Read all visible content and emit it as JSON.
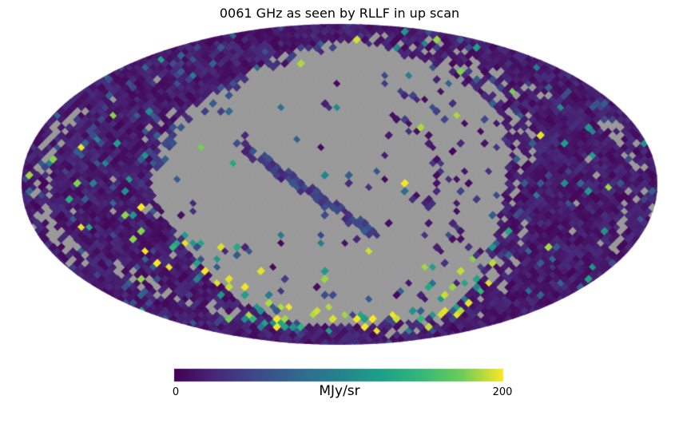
{
  "chart_data": {
    "type": "heatmap",
    "projection": "mollweide",
    "title": "0061 GHz as seen by RLLF in up scan",
    "colorbar": {
      "label": "MJy/sr",
      "min": 0,
      "max": 200,
      "tick_labels": [
        "0",
        "200"
      ]
    },
    "colormap": {
      "name": "viridis",
      "stops": [
        [
          0.0,
          "#440154"
        ],
        [
          0.125,
          "#482878"
        ],
        [
          0.25,
          "#3e4989"
        ],
        [
          0.375,
          "#31688e"
        ],
        [
          0.5,
          "#26828e"
        ],
        [
          0.625,
          "#1f9e89"
        ],
        [
          0.75,
          "#35b779"
        ],
        [
          0.875,
          "#6dcd59"
        ],
        [
          1.0,
          "#fde725"
        ]
      ]
    },
    "masked_color": "#9a9a9a",
    "background_color": "#ffffff",
    "description": "Low-resolution HEALPix sky map in Mollweide projection. Most observed pixels are low intensity (dark purple, ~0-30 MJy/sr). A large gray unobserved/masked region covers the map center, with gray scan-path arcs near the projection edges. Scattered bright teal and yellow pixels (~100-200 MJy/sr) concentrate along the lower boundary of the gray region, plus a dark blue diagonal scan streak crossing the masked area.",
    "map": {
      "center": [
        425,
        231
      ],
      "semi_axes": [
        398,
        201
      ],
      "pixel_size": 10,
      "masked_blob": {
        "center": [
          424,
          233
        ],
        "radii": [
          221,
          178
        ]
      },
      "streak_segment": [
        302,
        183,
        468,
        293
      ],
      "streak_half_width": 7,
      "value_fractions": {
        "low": 0.9,
        "mid_blue": 0.06,
        "teal": 0.025,
        "yellow": 0.015
      }
    }
  }
}
